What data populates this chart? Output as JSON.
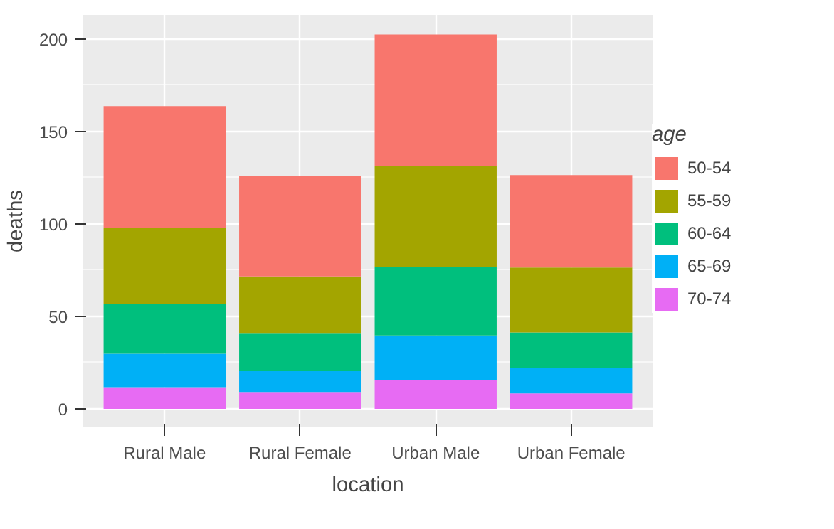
{
  "chart_data": {
    "type": "bar",
    "stacked": true,
    "xlabel": "location",
    "ylabel": "deaths",
    "legend_title": "age",
    "legend": "right",
    "grid": true,
    "categories": [
      "Rural Male",
      "Rural Female",
      "Urban Male",
      "Urban Female"
    ],
    "ylim": [
      -10,
      213
    ],
    "yticks": [
      0,
      50,
      100,
      150,
      200
    ],
    "series": [
      {
        "name": "70-74",
        "color": "#e76bf3",
        "values": [
          11.7,
          8.7,
          15.4,
          8.4
        ]
      },
      {
        "name": "65-69",
        "color": "#00b0f6",
        "values": [
          18.1,
          11.7,
          24.3,
          13.6
        ]
      },
      {
        "name": "60-64",
        "color": "#00bf7d",
        "values": [
          26.9,
          20.3,
          37.0,
          19.3
        ]
      },
      {
        "name": "55-59",
        "color": "#a3a500",
        "values": [
          41.0,
          30.9,
          54.6,
          35.1
        ]
      },
      {
        "name": "50-54",
        "color": "#f8766d",
        "values": [
          66.0,
          54.3,
          71.1,
          50.0
        ]
      }
    ]
  }
}
